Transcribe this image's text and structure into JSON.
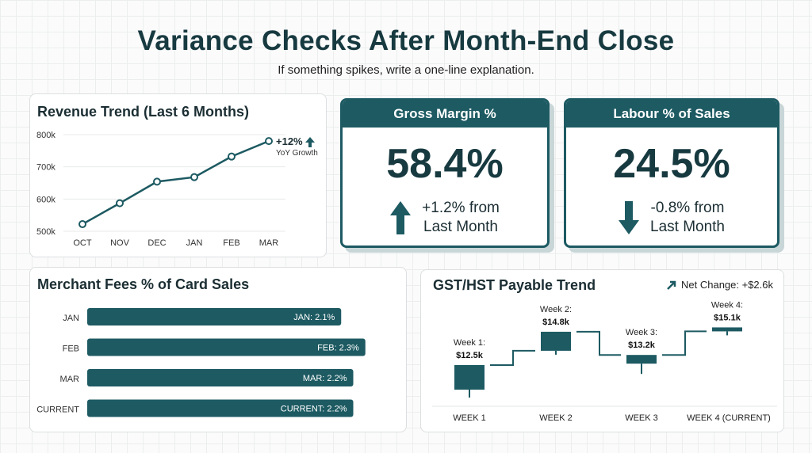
{
  "title": "Variance Checks After Month-End Close",
  "subtitle": "If something spikes, write a one-line explanation.",
  "colors": {
    "accent": "#1d5a62",
    "text": "#173a40"
  },
  "chart_data": [
    {
      "type": "line",
      "title": "Revenue Trend (Last 6 Months)",
      "categories": [
        "OCT",
        "NOV",
        "DEC",
        "JAN",
        "FEB",
        "MAR"
      ],
      "values": [
        522,
        587,
        654,
        668,
        732,
        780
      ],
      "y_ticks": [
        "500k",
        "600k",
        "700k",
        "800k"
      ],
      "ylim": [
        500,
        800
      ],
      "grid": true,
      "annotation": {
        "value": "+12%",
        "label": "YoY Growth",
        "icon": "arrow-up-icon"
      }
    },
    {
      "type": "bar",
      "orientation": "horizontal",
      "title": "Merchant Fees % of Card Sales",
      "categories": [
        "JAN",
        "FEB",
        "MAR",
        "CURRENT"
      ],
      "values": [
        2.1,
        2.3,
        2.2,
        2.2
      ],
      "data_labels": [
        "JAN: 2.1%",
        "FEB: 2.3%",
        "MAR: 2.2%",
        "CURRENT: 2.2%"
      ]
    },
    {
      "type": "bar",
      "subtype": "waterfall-step",
      "title": "GST/HST Payable Trend",
      "categories": [
        "WEEK 1",
        "WEEK 2",
        "WEEK 3",
        "WEEK 4 (CURRENT)"
      ],
      "values": [
        12.5,
        14.8,
        13.2,
        15.1
      ],
      "data_labels": [
        [
          "Week 1:",
          "$12.5k"
        ],
        [
          "Week 2:",
          "$14.8k"
        ],
        [
          "Week 3:",
          "$13.2k"
        ],
        [
          "Week 4:",
          "$15.1k"
        ]
      ],
      "annotation": {
        "text": "Net Change: +$2.6k",
        "icon": "arrow-up-right-icon"
      }
    }
  ],
  "kpis": [
    {
      "title": "Gross Margin %",
      "value": "58.4%",
      "change_line1": "+1.2% from",
      "change_line2": "Last Month",
      "direction": "up"
    },
    {
      "title": "Labour % of Sales",
      "value": "24.5%",
      "change_line1": "-0.8% from",
      "change_line2": "Last Month",
      "direction": "down"
    }
  ]
}
